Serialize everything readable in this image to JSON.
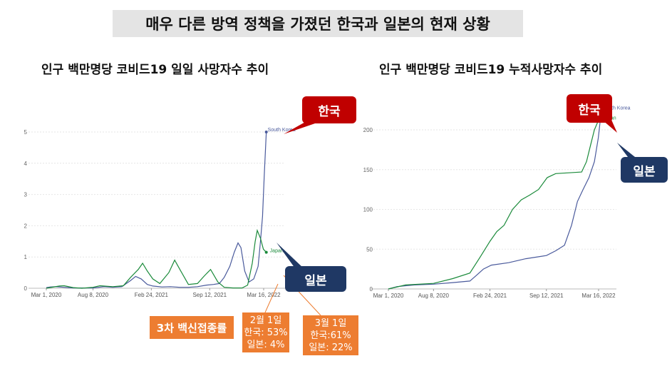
{
  "header": {
    "title": "매우 다른 방역 정책을 가졌던 한국과 일본의 현재 상황"
  },
  "colors": {
    "korea": "#4a5a9c",
    "japan": "#1a8a3a",
    "red": "#c00000",
    "navy": "#1f3864",
    "orange": "#ed7d31",
    "grid": "#e6e6e6"
  },
  "annotations": {
    "korea_left": "한국",
    "japan_left": "일본",
    "korea_right": "한국",
    "japan_right": "일본",
    "vaccine_label": "3차 백신접종률",
    "feb": {
      "date": "2월 1일",
      "korea": "한국: 53%",
      "japan": "일본: 4%"
    },
    "mar": {
      "date": "3월 1일",
      "korea": "한국:61%",
      "japan": "일본: 22%"
    }
  },
  "chart_data": [
    {
      "type": "line",
      "title": "인구 백만명당 코비드19 일일 사망자수 추이",
      "x_ticks": [
        "Mar 1, 2020",
        "Aug 8, 2020",
        "Feb 24, 2021",
        "Sep 12, 2021",
        "Mar 16, 2022"
      ],
      "y_ticks": [
        0,
        1,
        2,
        3,
        4,
        5
      ],
      "ylim": [
        0,
        5.2
      ],
      "grid": true,
      "series": [
        {
          "name": "South Korea",
          "x": [
            "2020-03-01",
            "2020-03-15",
            "2020-04-01",
            "2020-05-01",
            "2020-06-01",
            "2020-07-01",
            "2020-08-08",
            "2020-09-15",
            "2020-10-15",
            "2020-11-15",
            "2020-12-15",
            "2021-01-01",
            "2021-01-20",
            "2021-02-10",
            "2021-03-01",
            "2021-04-01",
            "2021-05-01",
            "2021-06-01",
            "2021-07-01",
            "2021-08-01",
            "2021-09-01",
            "2021-09-25",
            "2021-10-15",
            "2021-11-01",
            "2021-11-20",
            "2021-12-05",
            "2021-12-18",
            "2021-12-28",
            "2022-01-10",
            "2022-01-25",
            "2022-02-10",
            "2022-02-25",
            "2022-03-05",
            "2022-03-12",
            "2022-03-18",
            "2022-03-25"
          ],
          "y": [
            0.02,
            0.04,
            0.05,
            0.03,
            0.01,
            0.01,
            0.01,
            0.05,
            0.03,
            0.05,
            0.25,
            0.38,
            0.3,
            0.12,
            0.07,
            0.04,
            0.05,
            0.03,
            0.03,
            0.05,
            0.1,
            0.12,
            0.15,
            0.35,
            0.7,
            1.15,
            1.45,
            1.3,
            0.55,
            0.2,
            0.3,
            0.7,
            1.5,
            2.3,
            3.6,
            5.0
          ]
        },
        {
          "name": "Japan",
          "x": [
            "2020-03-01",
            "2020-04-15",
            "2020-05-01",
            "2020-06-01",
            "2020-07-01",
            "2020-08-08",
            "2020-09-01",
            "2020-10-15",
            "2020-11-20",
            "2020-12-15",
            "2021-01-10",
            "2021-01-25",
            "2021-02-10",
            "2021-03-01",
            "2021-03-25",
            "2021-04-25",
            "2021-05-15",
            "2021-06-05",
            "2021-07-01",
            "2021-08-01",
            "2021-08-25",
            "2021-09-15",
            "2021-10-10",
            "2021-11-01",
            "2021-12-01",
            "2022-01-01",
            "2022-01-20",
            "2022-02-05",
            "2022-02-15",
            "2022-02-22",
            "2022-03-05",
            "2022-03-15",
            "2022-03-25"
          ],
          "y": [
            0.0,
            0.07,
            0.08,
            0.02,
            0.0,
            0.03,
            0.08,
            0.05,
            0.08,
            0.35,
            0.6,
            0.8,
            0.55,
            0.3,
            0.15,
            0.5,
            0.9,
            0.55,
            0.12,
            0.15,
            0.4,
            0.6,
            0.2,
            0.03,
            0.01,
            0.01,
            0.1,
            0.8,
            1.5,
            1.85,
            1.6,
            1.25,
            1.15
          ]
        }
      ],
      "series_labels": [
        "South Korea",
        "Japan"
      ]
    },
    {
      "type": "line",
      "title": "인구 백만명당 코비드19 누적사망자수 추이",
      "x_ticks": [
        "Mar 1, 2020",
        "Aug 8, 2020",
        "Feb 24, 2021",
        "Sep 12, 2021",
        "Mar 16, 2022"
      ],
      "y_ticks": [
        0,
        50,
        100,
        150,
        200
      ],
      "ylim": [
        0,
        225
      ],
      "grid": true,
      "series": [
        {
          "name": "South Korea",
          "x": [
            "2020-03-01",
            "2020-04-01",
            "2020-06-01",
            "2020-08-08",
            "2020-10-15",
            "2020-12-15",
            "2021-01-10",
            "2021-02-01",
            "2021-03-01",
            "2021-05-01",
            "2021-07-01",
            "2021-09-12",
            "2021-10-15",
            "2021-11-15",
            "2021-12-10",
            "2021-12-31",
            "2022-01-20",
            "2022-02-10",
            "2022-03-01",
            "2022-03-15",
            "2022-03-25"
          ],
          "y": [
            0,
            3,
            5,
            6,
            8,
            10,
            18,
            25,
            30,
            33,
            38,
            42,
            48,
            55,
            80,
            110,
            125,
            140,
            160,
            190,
            222
          ]
        },
        {
          "name": "Japan",
          "x": [
            "2020-03-01",
            "2020-05-01",
            "2020-08-08",
            "2020-10-15",
            "2020-12-15",
            "2021-01-20",
            "2021-02-24",
            "2021-03-20",
            "2021-04-15",
            "2021-05-15",
            "2021-06-15",
            "2021-07-15",
            "2021-08-15",
            "2021-09-15",
            "2021-10-15",
            "2021-12-01",
            "2022-01-15",
            "2022-02-01",
            "2022-02-15",
            "2022-03-01",
            "2022-03-25"
          ],
          "y": [
            0,
            5,
            7,
            13,
            20,
            40,
            60,
            72,
            80,
            100,
            112,
            118,
            125,
            140,
            145,
            146,
            147,
            160,
            180,
            200,
            220
          ]
        }
      ],
      "series_labels": [
        "South Korea",
        "Japan"
      ]
    }
  ]
}
